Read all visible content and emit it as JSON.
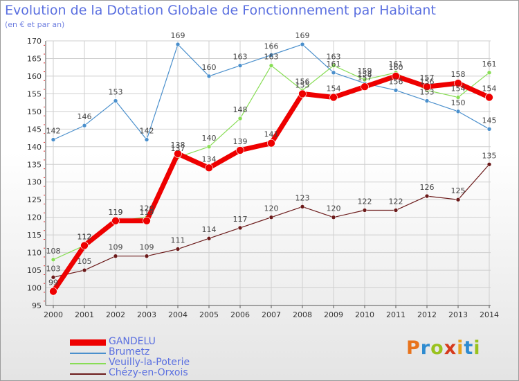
{
  "header": {
    "title": "Evolution de la Dotation Globale de Fonctionnement par Habitant",
    "subtitle": "(en € et par an)"
  },
  "logo": {
    "text": "Proxiti",
    "letters": [
      "P",
      "r",
      "o",
      "x",
      "i",
      "t",
      "i"
    ],
    "colors": [
      "#e8731c",
      "#2e8bd0",
      "#9ac21e",
      "#d63a1c",
      "#e8a21c",
      "#2e8bd0",
      "#9ac21e"
    ]
  },
  "chart_data": {
    "type": "line",
    "title": "Evolution de la Dotation Globale de Fonctionnement par Habitant",
    "subtitle": "(en € et par an)",
    "xlabel": "",
    "ylabel": "",
    "x": [
      "2000",
      "2001",
      "2002",
      "2003",
      "2004",
      "2005",
      "2006",
      "2007",
      "2008",
      "2009",
      "2010",
      "2011",
      "2012",
      "2013",
      "2014"
    ],
    "yticks": [
      95,
      100,
      105,
      110,
      115,
      120,
      125,
      130,
      135,
      140,
      145,
      150,
      155,
      160,
      165,
      170
    ],
    "ylim": [
      95,
      170
    ],
    "grid": true,
    "legend_position": "bottom-left",
    "series": [
      {
        "name": "Chézy-en-Orxois",
        "color": "#6b1a1a",
        "values": [
          103,
          105,
          109,
          109,
          111,
          114,
          117,
          120,
          123,
          120,
          122,
          122,
          126,
          125,
          135
        ],
        "labels": [
          "103",
          "105",
          "109",
          "109",
          "111",
          "114",
          "117",
          "120",
          "123",
          "120",
          "122",
          "122",
          "126",
          "125",
          "135"
        ]
      },
      {
        "name": "Brumetz",
        "color": "#4a8fcc",
        "values": [
          142,
          146,
          153,
          142,
          169,
          160,
          163,
          166,
          169,
          161,
          158,
          156,
          153,
          150,
          145
        ],
        "labels": [
          "142",
          "146",
          "153",
          "142",
          "169",
          "160",
          "163",
          "166",
          "169",
          "161",
          "158",
          "156",
          "153",
          "150",
          "145"
        ]
      },
      {
        "name": "Veuilly-la-Poterie",
        "color": "#88dd55",
        "values": [
          108,
          112,
          119,
          120,
          137,
          140,
          148,
          163,
          156,
          163,
          159,
          161,
          156,
          154,
          161
        ],
        "labels": [
          "108",
          "112",
          "119",
          "120",
          "137",
          "140",
          "148",
          "163",
          "156",
          "163",
          "159",
          "161",
          "156",
          "154",
          "161"
        ]
      },
      {
        "name": "GANDELU",
        "color": "#ee0000",
        "values": [
          99,
          112,
          119,
          119,
          138,
          134,
          139,
          141,
          155,
          154,
          157,
          160,
          157,
          158,
          154
        ],
        "labels": [
          "99",
          "112",
          "119",
          "119",
          "138",
          "134",
          "139",
          "141",
          "155",
          "154",
          "157",
          "160",
          "157",
          "158",
          "154"
        ]
      }
    ],
    "legend": [
      "GANDELU",
      "Brumetz",
      "Veuilly-la-Poterie",
      "Chézy-en-Orxois"
    ]
  }
}
